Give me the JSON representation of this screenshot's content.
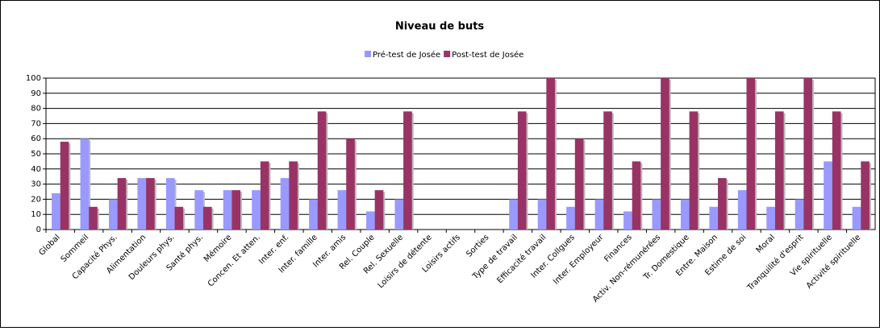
{
  "chart_data": {
    "type": "bar",
    "title": "Niveau de buts",
    "categories": [
      "Global",
      "Sommeil",
      "Capacité Phys.",
      "Alimentation",
      "Douleurs phys.",
      "Santé phys.",
      "Mémoire",
      "Concen. Et atten.",
      "Inter. enf.",
      "Inter. famille",
      "Inter. amis",
      "Rel. Couple",
      "Rel. Sexuelle",
      "Loisirs de détente",
      "Loisirs actifs",
      "Sorties",
      "Type de travail",
      "Efficacité travail",
      "Inter. Collgues",
      "Inter. Employeur",
      "Finances",
      "Activ. Non-rémunérées",
      "Tr. Domestique",
      "Entre. Maison",
      "Estime de soi",
      "Moral",
      "Tranquilité d'esprit",
      "Vie spirituelle",
      "Activité spirituelle"
    ],
    "series": [
      {
        "name": "Pré-test de Josée",
        "color": "#9999ff",
        "values": [
          24,
          60,
          20,
          34,
          34,
          26,
          26,
          26,
          34,
          20,
          26,
          12,
          20,
          0,
          0,
          0,
          20,
          20,
          15,
          20,
          12,
          20,
          20,
          15,
          26,
          15,
          20,
          45,
          15
        ]
      },
      {
        "name": "Post-test de Josée",
        "color": "#993366",
        "values": [
          58,
          15,
          34,
          34,
          15,
          15,
          26,
          45,
          45,
          78,
          60,
          26,
          78,
          0,
          0,
          0,
          78,
          100,
          60,
          78,
          45,
          100,
          78,
          34,
          100,
          78,
          100,
          78,
          45
        ]
      }
    ],
    "ylim": [
      0,
      100
    ],
    "yticks": [
      0,
      10,
      20,
      30,
      40,
      50,
      60,
      70,
      80,
      90,
      100
    ],
    "grid": true,
    "legend": "top"
  }
}
